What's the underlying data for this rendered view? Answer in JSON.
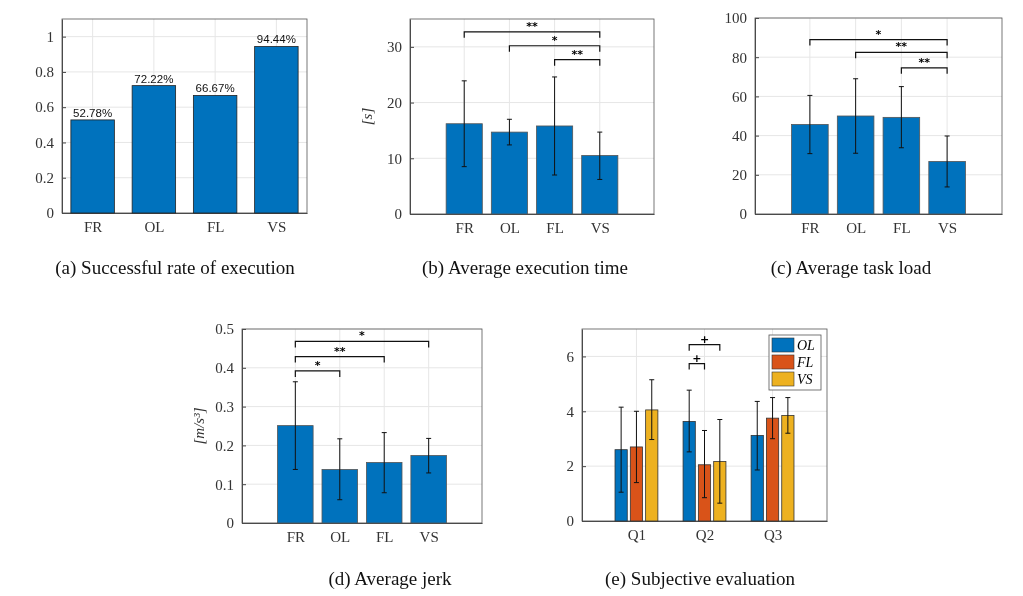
{
  "chart_data": [
    {
      "type": "bar",
      "title": "(a) Successful rate of execution",
      "categories": [
        "FR",
        "OL",
        "FL",
        "VS"
      ],
      "values": [
        0.5278,
        0.7222,
        0.6667,
        0.9444
      ],
      "value_labels": [
        "52.78%",
        "72.22%",
        "66.67%",
        "94.44%"
      ],
      "color": "#0072bd",
      "ylim": [
        0,
        1.1
      ],
      "yticks": [
        0,
        0.2,
        0.4,
        0.6,
        0.8,
        1
      ],
      "grid": true
    },
    {
      "type": "bar",
      "title": "(b) Average execution time",
      "ylabel": "[s]",
      "categories": [
        "FR",
        "OL",
        "FL",
        "VS"
      ],
      "values": [
        16.2,
        14.7,
        15.8,
        10.5
      ],
      "errors": [
        [
          8.5,
          23.9
        ],
        [
          12.4,
          17.0
        ],
        [
          7.0,
          24.6
        ],
        [
          6.2,
          14.7
        ]
      ],
      "color": "#0072bd",
      "ylim": [
        0,
        35
      ],
      "yticks": [
        0,
        10,
        20,
        30
      ],
      "grid": true,
      "annotations": [
        "**",
        "*",
        "**"
      ]
    },
    {
      "type": "bar",
      "title": "(c) Average task load",
      "categories": [
        "FR",
        "OL",
        "FL",
        "VS"
      ],
      "values": [
        45.7,
        50.0,
        49.3,
        26.8
      ],
      "errors": [
        [
          30.8,
          60.5
        ],
        [
          31.0,
          69.0
        ],
        [
          33.8,
          65.0
        ],
        [
          13.8,
          39.8
        ]
      ],
      "color": "#0072bd",
      "ylim": [
        0,
        100
      ],
      "yticks": [
        0,
        20,
        40,
        60,
        80,
        100
      ],
      "grid": true,
      "annotations": [
        "*",
        "**",
        "**"
      ]
    },
    {
      "type": "bar",
      "title": "(d) Average jerk",
      "ylabel": "[m/s³]",
      "categories": [
        "FR",
        "OL",
        "FL",
        "VS"
      ],
      "values": [
        0.251,
        0.138,
        0.156,
        0.174
      ],
      "errors": [
        [
          0.138,
          0.364
        ],
        [
          0.06,
          0.217
        ],
        [
          0.078,
          0.233
        ],
        [
          0.129,
          0.218
        ]
      ],
      "color": "#0072bd",
      "ylim": [
        0,
        0.5
      ],
      "yticks": [
        0,
        0.1,
        0.2,
        0.3,
        0.4,
        0.5
      ],
      "grid": true,
      "annotations": [
        "*",
        "**",
        "*"
      ]
    },
    {
      "type": "bar",
      "title": "(e) Subjective evaluation",
      "categories": [
        "Q1",
        "Q2",
        "Q3"
      ],
      "series": [
        {
          "name": "OL",
          "color": "#0072bd",
          "values": [
            2.6,
            3.63,
            3.12
          ],
          "errors": [
            [
              1.05,
              4.15
            ],
            [
              2.52,
              4.77
            ],
            [
              1.86,
              4.36
            ]
          ]
        },
        {
          "name": "FL",
          "color": "#d95319",
          "values": [
            2.7,
            2.05,
            3.75
          ],
          "errors": [
            [
              1.4,
              4.0
            ],
            [
              0.85,
              3.3
            ],
            [
              3.0,
              4.5
            ]
          ]
        },
        {
          "name": "VS",
          "color": "#edb120",
          "values": [
            4.05,
            2.17,
            3.85
          ],
          "errors": [
            [
              2.97,
              5.15
            ],
            [
              0.65,
              3.7
            ],
            [
              3.2,
              4.5
            ]
          ]
        }
      ],
      "ylim": [
        0,
        7
      ],
      "yticks": [
        0,
        2,
        4,
        6
      ],
      "grid": true,
      "legend": "top right",
      "annotations": [
        "+",
        "+"
      ]
    }
  ]
}
